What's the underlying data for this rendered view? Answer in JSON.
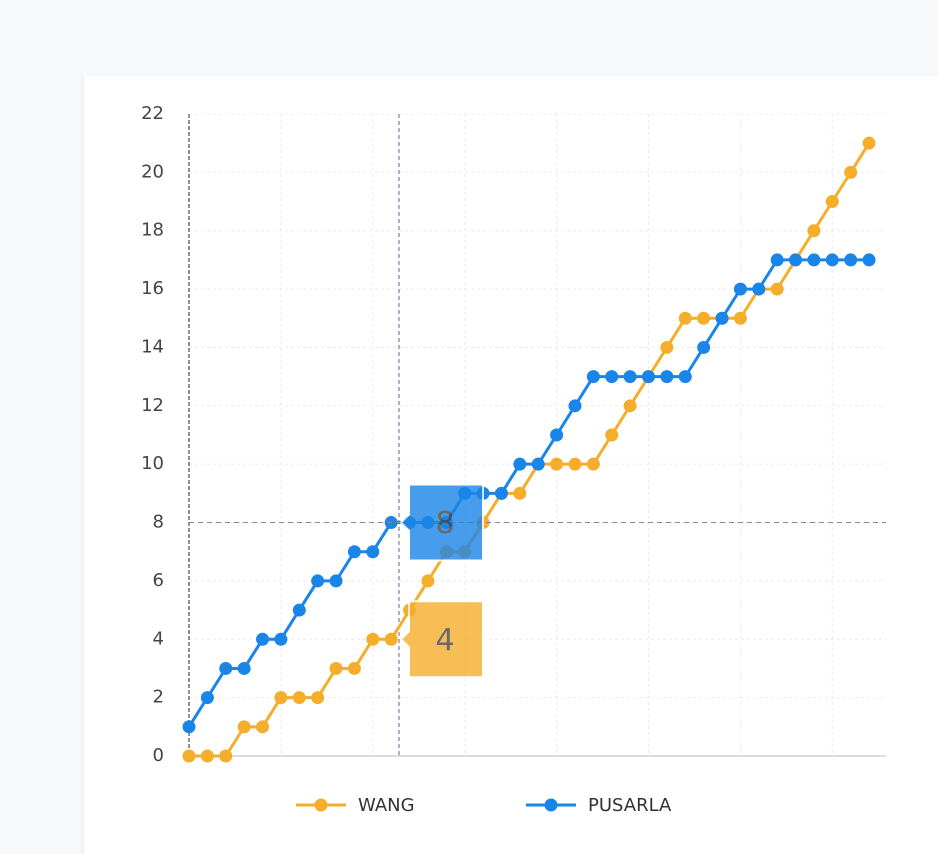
{
  "chart_data": {
    "type": "line",
    "categories": [
      null,
      null,
      null,
      null,
      null,
      null,
      null,
      null,
      null,
      null,
      null,
      null,
      null,
      null,
      null,
      null,
      null,
      null,
      null,
      null,
      null,
      null,
      null,
      null,
      null,
      null,
      null,
      null,
      null,
      null,
      null,
      null,
      null,
      null,
      null,
      null,
      null,
      null
    ],
    "series": [
      {
        "name": "WANG",
        "color": "#f5ae2b",
        "values": [
          0,
          0,
          0,
          1,
          1,
          2,
          2,
          2,
          3,
          3,
          4,
          4,
          5,
          6,
          7,
          7,
          8,
          9,
          9,
          10,
          10,
          10,
          10,
          11,
          12,
          13,
          14,
          15,
          15,
          15,
          15,
          16,
          16,
          17,
          18,
          19,
          20,
          21
        ]
      },
      {
        "name": "PUSARLA",
        "color": "#1a85e8",
        "values": [
          1,
          2,
          3,
          3,
          4,
          4,
          5,
          6,
          6,
          7,
          7,
          8,
          8,
          8,
          8,
          9,
          9,
          9,
          10,
          10,
          11,
          12,
          13,
          13,
          13,
          13,
          13,
          13,
          14,
          15,
          16,
          16,
          17,
          17,
          17,
          17,
          17,
          17
        ]
      }
    ],
    "ylim": [
      0,
      22
    ],
    "yticks": [
      0,
      2,
      4,
      6,
      8,
      10,
      12,
      14,
      16,
      18,
      20,
      22
    ],
    "grid": true,
    "tooltip_labels": [
      8,
      4
    ]
  }
}
